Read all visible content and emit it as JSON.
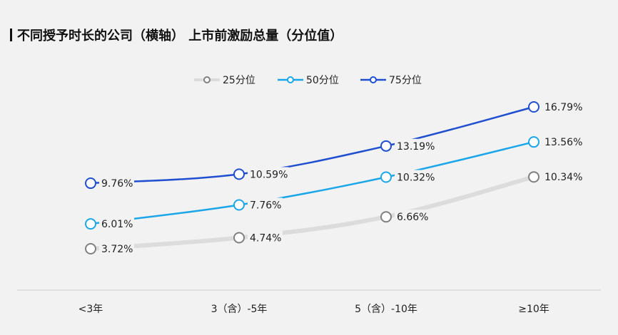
{
  "title": "不同授予时长的公司（横轴） 上市前激励总量（分位值）",
  "chart_data": {
    "type": "line",
    "title": "不同授予时长的公司（横轴） 上市前激励总量（分位值）",
    "categories": [
      "<3年",
      "3（含）-5年",
      "5（含）-10年",
      "≥10年"
    ],
    "series": [
      {
        "name": "25分位",
        "values": [
          3.72,
          4.74,
          6.66,
          10.34
        ],
        "labels": [
          "3.72%",
          "4.74%",
          "6.66%",
          "10.34%"
        ],
        "color": "#dcdcdc",
        "marker": "#808080"
      },
      {
        "name": "50分位",
        "values": [
          6.01,
          7.76,
          10.32,
          13.56
        ],
        "labels": [
          "6.01%",
          "7.76%",
          "10.32%",
          "13.56%"
        ],
        "color": "#1aa6e8",
        "marker": "#1aa6e8"
      },
      {
        "name": "75分位",
        "values": [
          9.76,
          10.59,
          13.19,
          16.79
        ],
        "labels": [
          "9.76%",
          "10.59%",
          "13.19%",
          "16.79%"
        ],
        "color": "#1f4fd0",
        "marker": "#1f4fd0"
      }
    ],
    "legend_position": "top-center",
    "grid": false,
    "ylim": [
      0,
      20
    ]
  }
}
